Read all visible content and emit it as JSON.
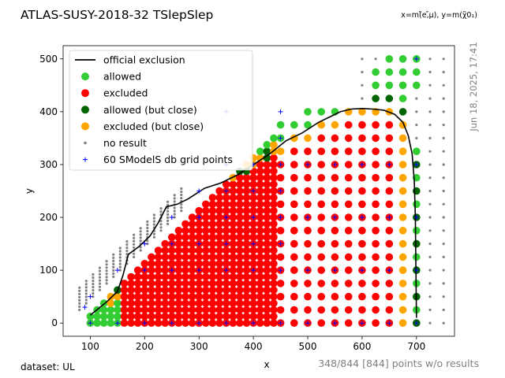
{
  "chart_data": {
    "type": "scatter",
    "title": "ATLAS-SUSY-2018-32 TSlepSlep",
    "axes_note": "x=m(̃e,̃μ), y=m(χ̃0₁)",
    "xlabel": "x",
    "ylabel": "y",
    "xlim": [
      50,
      770
    ],
    "ylim": [
      -25,
      525
    ],
    "xticks": [
      100,
      200,
      300,
      400,
      500,
      600,
      700
    ],
    "yticks": [
      0,
      100,
      200,
      300,
      400,
      500
    ],
    "timestamp": "Jun 18, 2025, 17:41",
    "footer_left": "dataset: UL",
    "footer_right": "348/844 [844] points w/o results",
    "legend": {
      "placement": "upper-left",
      "items": [
        {
          "label": "official exclusion",
          "key": "line"
        },
        {
          "label": "allowed",
          "key": "allowed"
        },
        {
          "label": "excluded",
          "key": "excluded"
        },
        {
          "label": "allowed (but close)",
          "key": "allowed_close"
        },
        {
          "label": "excluded (but close)",
          "key": "excluded_close"
        },
        {
          "label": "no result",
          "key": "noresult"
        },
        {
          "label": "60 SModelS db grid points",
          "key": "grid"
        }
      ]
    },
    "colors": {
      "allowed": "#32cd32",
      "excluded": "#ff0000",
      "allowed_close": "#006400",
      "excluded_close": "#ffa500",
      "noresult": "#808080",
      "grid": "#0000ff",
      "line": "#000000"
    },
    "exclusion_curve": [
      [
        100,
        15
      ],
      [
        130,
        40
      ],
      [
        150,
        60
      ],
      [
        160,
        90
      ],
      [
        170,
        130
      ],
      [
        190,
        145
      ],
      [
        210,
        165
      ],
      [
        225,
        190
      ],
      [
        240,
        220
      ],
      [
        260,
        225
      ],
      [
        280,
        235
      ],
      [
        310,
        255
      ],
      [
        340,
        265
      ],
      [
        370,
        280
      ],
      [
        400,
        300
      ],
      [
        430,
        320
      ],
      [
        460,
        345
      ],
      [
        490,
        360
      ],
      [
        520,
        380
      ],
      [
        540,
        390
      ],
      [
        560,
        400
      ],
      [
        580,
        405
      ],
      [
        600,
        406
      ],
      [
        620,
        405
      ],
      [
        640,
        403
      ],
      [
        660,
        395
      ],
      [
        675,
        380
      ],
      [
        685,
        355
      ],
      [
        692,
        320
      ],
      [
        696,
        270
      ],
      [
        698,
        200
      ],
      [
        699,
        100
      ],
      [
        700,
        10
      ]
    ],
    "grid_points": [
      [
        100,
        0
      ],
      [
        150,
        0
      ],
      [
        200,
        0
      ],
      [
        250,
        0
      ],
      [
        300,
        0
      ],
      [
        350,
        0
      ],
      [
        400,
        0
      ],
      [
        450,
        0
      ],
      [
        500,
        0
      ],
      [
        550,
        0
      ],
      [
        600,
        0
      ],
      [
        650,
        0
      ],
      [
        700,
        0
      ],
      [
        90,
        30
      ],
      [
        100,
        50
      ],
      [
        150,
        100
      ],
      [
        200,
        100
      ],
      [
        250,
        100
      ],
      [
        300,
        100
      ],
      [
        350,
        100
      ],
      [
        400,
        100
      ],
      [
        450,
        100
      ],
      [
        200,
        150
      ],
      [
        250,
        150
      ],
      [
        300,
        150
      ],
      [
        350,
        150
      ],
      [
        400,
        150
      ],
      [
        450,
        150
      ],
      [
        250,
        200
      ],
      [
        300,
        200
      ],
      [
        350,
        200
      ],
      [
        400,
        200
      ],
      [
        450,
        200
      ],
      [
        300,
        250
      ],
      [
        350,
        250
      ],
      [
        400,
        250
      ],
      [
        450,
        250
      ],
      [
        350,
        300
      ],
      [
        400,
        300
      ],
      [
        450,
        300
      ],
      [
        450,
        350
      ],
      [
        450,
        400
      ],
      [
        350,
        400
      ],
      [
        300,
        200
      ],
      [
        500,
        300
      ],
      [
        550,
        300
      ],
      [
        600,
        300
      ],
      [
        650,
        300
      ],
      [
        700,
        300
      ],
      [
        500,
        200
      ],
      [
        550,
        200
      ],
      [
        600,
        200
      ],
      [
        650,
        200
      ],
      [
        700,
        200
      ],
      [
        500,
        100
      ],
      [
        550,
        100
      ],
      [
        600,
        100
      ],
      [
        650,
        100
      ],
      [
        700,
        100
      ],
      [
        700,
        500
      ]
    ]
  }
}
